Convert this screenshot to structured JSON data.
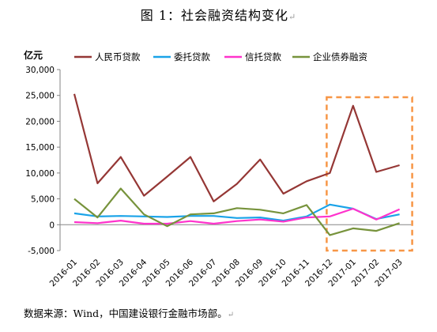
{
  "doc": {
    "title": "图 1：社会融资结构变化",
    "paragraph_mark": "↵",
    "source_note": "数据来源：Wind，中国建设银行金融市场部。"
  },
  "chart_data": {
    "type": "line",
    "title": "",
    "ylabel": "亿元",
    "xlabel": "",
    "ylim": [
      -5000,
      30000
    ],
    "yticks": [
      -5000,
      0,
      5000,
      10000,
      15000,
      20000,
      25000,
      30000
    ],
    "ytick_labels": [
      "-5,000",
      "0",
      "5,000",
      "10,000",
      "15,000",
      "20,000",
      "25,000",
      "30,000"
    ],
    "grid": false,
    "legend_position": "top",
    "categories": [
      "2016-01",
      "2016-02",
      "2016-03",
      "2016-04",
      "2016-05",
      "2016-06",
      "2016-07",
      "2016-08",
      "2016-09",
      "2016-10",
      "2016-11",
      "2016-12",
      "2017-01",
      "2017-02",
      "2017-03"
    ],
    "series": [
      {
        "name": "人民币贷款",
        "color": "#953735",
        "values": [
          25300,
          8000,
          13100,
          5600,
          9300,
          13100,
          4500,
          7900,
          12600,
          6000,
          8400,
          10000,
          23000,
          10200,
          11500
        ]
      },
      {
        "name": "委托贷款",
        "color": "#1aa3e8",
        "values": [
          2200,
          1600,
          1700,
          1600,
          1500,
          1700,
          1700,
          1300,
          1400,
          800,
          1600,
          3900,
          3100,
          1100,
          2000
        ]
      },
      {
        "name": "信托贷款",
        "color": "#ff33cc",
        "values": [
          500,
          300,
          800,
          200,
          200,
          700,
          200,
          700,
          1000,
          600,
          1400,
          1600,
          3100,
          1000,
          3000
        ]
      },
      {
        "name": "企业债券融资",
        "color": "#77933c",
        "values": [
          5000,
          1400,
          7000,
          2000,
          -300,
          2000,
          2200,
          3200,
          2900,
          2200,
          3800,
          -2000,
          -700,
          -1200,
          300
        ]
      }
    ],
    "highlight_box": {
      "from_category": "2016-12",
      "to_category": "2017-03",
      "color": "#f79646",
      "style": "dashed"
    }
  }
}
